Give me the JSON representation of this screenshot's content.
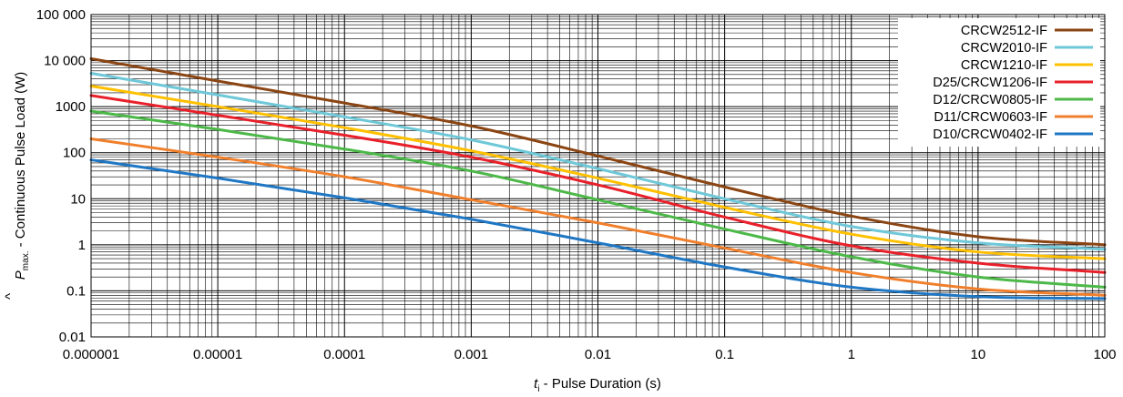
{
  "chart_data": {
    "type": "line",
    "xscale": "log",
    "yscale": "log",
    "xlim": [
      1e-06,
      100
    ],
    "ylim": [
      0.01,
      100000
    ],
    "grid": true,
    "legend_position": "top-right",
    "x_tick_labels": [
      "0.000001",
      "0.00001",
      "0.0001",
      "0.001",
      "0.01",
      "0.1",
      "1",
      "10",
      "100"
    ],
    "y_tick_labels": [
      "100 000",
      "10 000",
      "1000",
      "100",
      "10",
      "1",
      "0.1",
      "0.01"
    ],
    "xlabel": {
      "symbol": "t",
      "subscript": "i",
      "text": " - Pulse Duration (s)"
    },
    "ylabel": {
      "symbol": "P",
      "hat": "^",
      "subscript": "max.",
      "text": " - Continuous Pulse Load (W)"
    },
    "series": [
      {
        "name": "CRCW2512-IF",
        "color": "#8b4513",
        "x": [
          1e-06,
          1e-05,
          0.0001,
          0.001,
          0.01,
          0.1,
          1,
          10,
          100
        ],
        "y": [
          11000,
          3600,
          1200,
          380,
          85,
          18,
          4.2,
          1.5,
          1.0
        ]
      },
      {
        "name": "CRCW2010-IF",
        "color": "#6ec8d8",
        "x": [
          1e-06,
          1e-05,
          0.0001,
          0.001,
          0.01,
          0.1,
          1,
          10,
          100
        ],
        "y": [
          5300,
          1800,
          600,
          190,
          45,
          10,
          2.5,
          1.1,
          0.8
        ]
      },
      {
        "name": "CRCW1210-IF",
        "color": "#ffc000",
        "x": [
          1e-06,
          1e-05,
          0.0001,
          0.001,
          0.01,
          0.1,
          1,
          10,
          100
        ],
        "y": [
          2800,
          1000,
          350,
          110,
          28,
          6.5,
          1.7,
          0.7,
          0.5
        ]
      },
      {
        "name": "D25/CRCW1206-IF",
        "color": "#e8202a",
        "x": [
          1e-06,
          1e-05,
          0.0001,
          0.001,
          0.01,
          0.1,
          1,
          10,
          100
        ],
        "y": [
          1750,
          650,
          240,
          80,
          20,
          4.0,
          0.95,
          0.4,
          0.25
        ]
      },
      {
        "name": "D12/CRCW0805-IF",
        "color": "#4cb848",
        "x": [
          1e-06,
          1e-05,
          0.0001,
          0.001,
          0.01,
          0.1,
          1,
          10,
          100
        ],
        "y": [
          800,
          320,
          120,
          40,
          9.5,
          2.2,
          0.55,
          0.2,
          0.12
        ]
      },
      {
        "name": "D11/CRCW0603-IF",
        "color": "#f07f2c",
        "x": [
          1e-06,
          1e-05,
          0.0001,
          0.001,
          0.01,
          0.1,
          1,
          10,
          100
        ],
        "y": [
          200,
          80,
          30,
          9.5,
          3.0,
          0.85,
          0.25,
          0.11,
          0.08
        ]
      },
      {
        "name": "D10/CRCW0402-IF",
        "color": "#1f77c4",
        "x": [
          1e-06,
          1e-05,
          0.0001,
          0.001,
          0.01,
          0.1,
          1,
          10,
          100
        ],
        "y": [
          70,
          28,
          10.5,
          3.6,
          1.1,
          0.33,
          0.12,
          0.075,
          0.068
        ]
      }
    ]
  }
}
